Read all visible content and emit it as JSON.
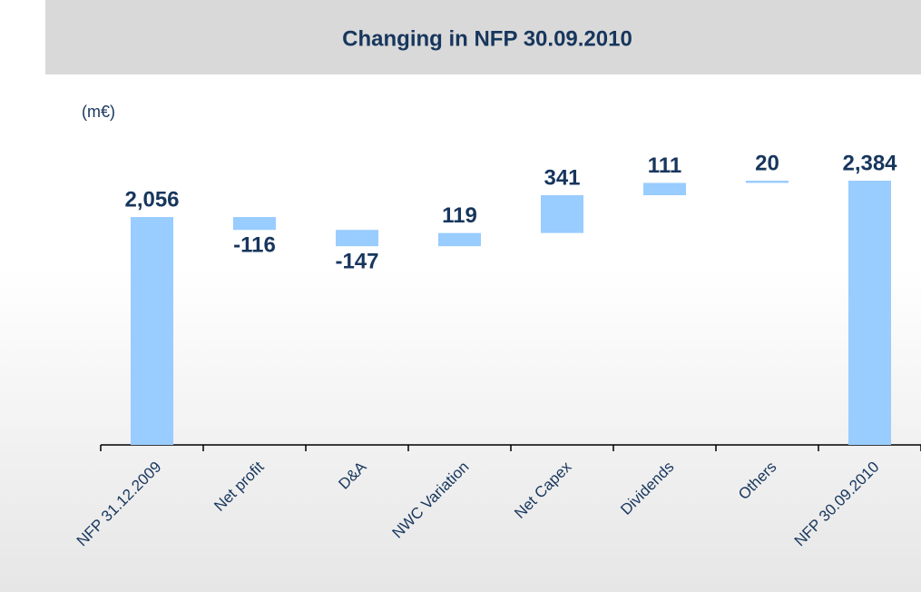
{
  "chart_data": {
    "type": "waterfall",
    "title": "Changing in NFP 30.09.2010",
    "unit_label": "(m€)",
    "categories": [
      "NFP 31.12.2009",
      "Net profit",
      "D&A",
      "NWC Variation",
      "Net Capex",
      "Dividends",
      "Others",
      "NFP 30.09.2010"
    ],
    "values": [
      2056,
      -116,
      -147,
      119,
      341,
      111,
      20,
      2384
    ],
    "value_labels": [
      "2,056",
      "-116",
      "-147",
      "119",
      "341",
      "111",
      "20",
      "2,384"
    ],
    "color": "#99ccff"
  }
}
